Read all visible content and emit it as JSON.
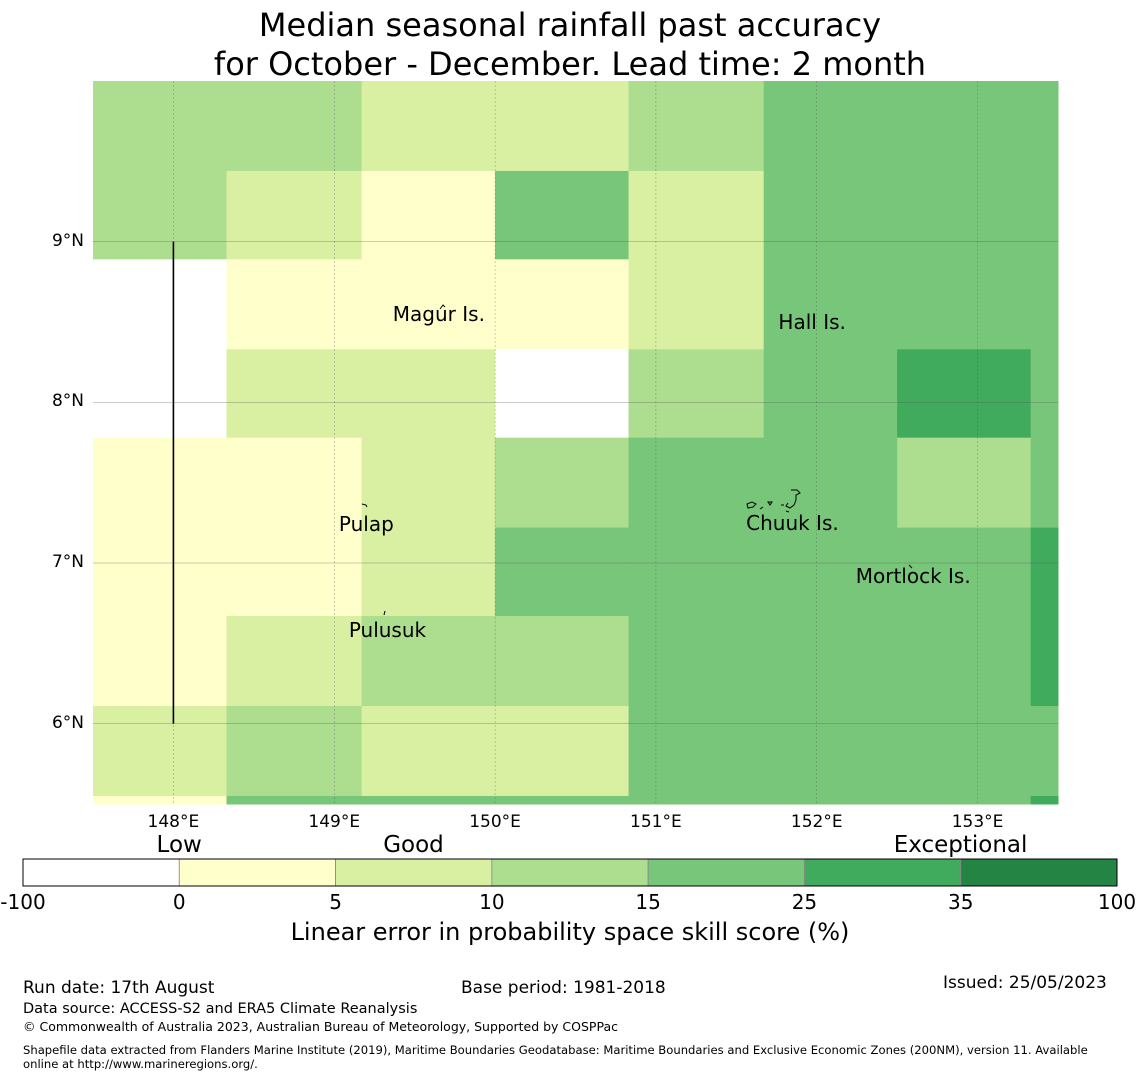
{
  "title_line1": "Median seasonal rainfall past accuracy",
  "title_line2": "for October - December. Lead time: 2 month",
  "map": {
    "lon_range": [
      147.5,
      153.5
    ],
    "lat_range": [
      5.5,
      10.0
    ],
    "lon_ticks": [
      {
        "value": 148,
        "label": "148°E"
      },
      {
        "value": 149,
        "label": "149°E"
      },
      {
        "value": 150,
        "label": "150°E"
      },
      {
        "value": 151,
        "label": "151°E"
      },
      {
        "value": 152,
        "label": "152°E"
      },
      {
        "value": 153,
        "label": "153°E"
      }
    ],
    "lat_ticks": [
      {
        "value": 9,
        "label": "9°N"
      },
      {
        "value": 8,
        "label": "8°N"
      },
      {
        "value": 7,
        "label": "7°N"
      },
      {
        "value": 6,
        "label": "6°N"
      }
    ],
    "grid": true,
    "grid_cells": {
      "lon_edges": [
        147.5,
        148.33,
        149.17,
        150.0,
        150.83,
        151.67,
        152.5,
        153.33,
        153.5
      ],
      "lat_edges_top_to_bottom": [
        10.0,
        9.44,
        8.89,
        8.33,
        7.78,
        7.22,
        6.67,
        6.11,
        5.55,
        5.5
      ],
      "rows": [
        [
          3,
          3,
          2,
          2,
          3,
          4,
          4,
          4
        ],
        [
          3,
          2,
          1,
          4,
          2,
          4,
          4,
          4
        ],
        [
          0,
          1,
          1,
          1,
          2,
          4,
          4,
          4
        ],
        [
          0,
          2,
          2,
          0,
          3,
          4,
          5,
          4
        ],
        [
          1,
          1,
          2,
          3,
          4,
          4,
          3,
          4
        ],
        [
          1,
          1,
          2,
          4,
          4,
          4,
          4,
          5
        ],
        [
          1,
          2,
          3,
          3,
          4,
          4,
          4,
          5
        ],
        [
          2,
          3,
          2,
          2,
          4,
          4,
          4,
          4
        ],
        [
          1,
          4,
          4,
          4,
          4,
          4,
          4,
          5
        ]
      ]
    },
    "islands": [
      {
        "name": "Magur Is.",
        "lon": 149.65,
        "lat": 8.55
      },
      {
        "name": "Hall Is.",
        "lon": 151.97,
        "lat": 8.5
      },
      {
        "name": "Pulap",
        "lon": 149.2,
        "lat": 7.24
      },
      {
        "name": "Chuuk Is.",
        "lon": 151.85,
        "lat": 7.25
      },
      {
        "name": "Pulusuk",
        "lon": 149.33,
        "lat": 6.58
      },
      {
        "name": "Mortlock Is.",
        "lon": 152.6,
        "lat": 6.92
      }
    ],
    "boundary_line": {
      "lon": 148.0,
      "lat_from": 9.0,
      "lat_to": 6.0
    }
  },
  "colorbar": {
    "categories": [
      {
        "label": "Low",
        "x_value": -0.15
      },
      {
        "label": "Good",
        "x_value": 7.5
      },
      {
        "label": "Exceptional",
        "x_value": 35
      }
    ],
    "ticks": [
      "-100",
      "0",
      "5",
      "10",
      "15",
      "25",
      "35",
      "100"
    ],
    "colors": [
      "#ffffff",
      "#ffffcc",
      "#d9f0a3",
      "#addd8e",
      "#78c679",
      "#41ab5d",
      "#238443"
    ],
    "label": "Linear error in probability space skill score (%)"
  },
  "footer": {
    "run_date": "Run date: 17th August",
    "base_period": "Base period: 1981-2018",
    "issued": "Issued: 25/05/2023",
    "data_source": "Data source: ACCESS-S2 and ERA5 Climate Reanalysis",
    "copyright": "© Commonwealth of Australia 2023, Australian Bureau of Meteorology, Supported by COSPPac",
    "shapefile_line1": "Shapefile data extracted from Flanders Marine Institute (2019), Maritime Boundaries Geodatabase: Maritime Boundaries and Exclusive Economic Zones (200NM), version 11. Available",
    "shapefile_line2": "online at http://www.marineregions.org/."
  }
}
